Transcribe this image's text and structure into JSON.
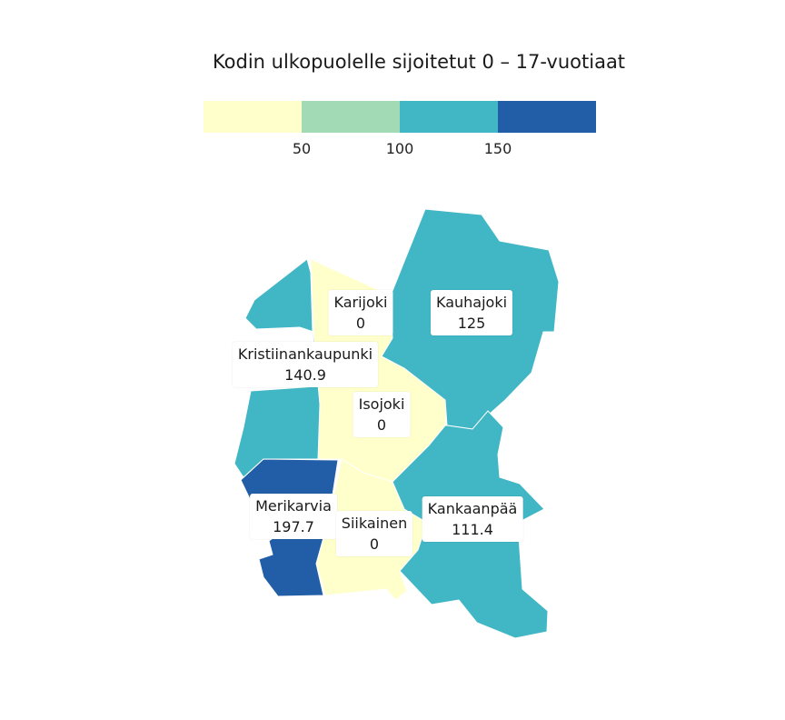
{
  "title": "Kodin ulkopuolelle sijoitetut 0 – 17-vuotiaat",
  "legend": {
    "bins": [
      {
        "color": "#ffffcc"
      },
      {
        "color": "#a1dab4"
      },
      {
        "color": "#41b6c4"
      },
      {
        "color": "#225ea8"
      }
    ],
    "ticks": [
      "50",
      "100",
      "150"
    ]
  },
  "regions": [
    {
      "name": "Karijoki",
      "value": "0",
      "color": "#ffffcc"
    },
    {
      "name": "Kauhajoki",
      "value": "125",
      "color": "#41b6c4"
    },
    {
      "name": "Kristiinankaupunki",
      "value": "140.9",
      "color": "#41b6c4"
    },
    {
      "name": "Isojoki",
      "value": "0",
      "color": "#ffffcc"
    },
    {
      "name": "Merikarvia",
      "value": "197.7",
      "color": "#225ea8"
    },
    {
      "name": "Siikainen",
      "value": "0",
      "color": "#ffffcc"
    },
    {
      "name": "Kankaanpää",
      "value": "111.4",
      "color": "#41b6c4"
    }
  ]
}
